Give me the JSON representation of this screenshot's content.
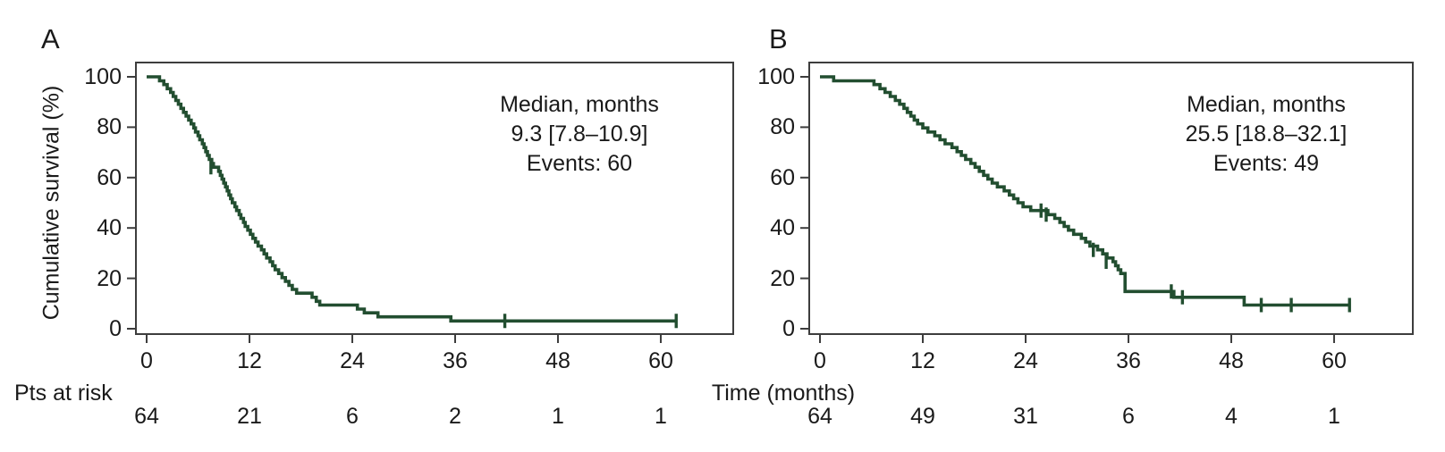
{
  "figure": {
    "panel_a_letter": "A",
    "panel_b_letter": "B",
    "y_axis_title": "Cumulative survival (%)",
    "x_axis_title": "Time (months)",
    "pts_at_risk_label": "Pts at risk",
    "curve_color": "#224e30",
    "axis_color": "#3d3d3d",
    "text_color": "#1a1a1a",
    "background_color": "#ffffff"
  },
  "chart_data": [
    {
      "type": "line",
      "subtype": "kaplan-meier-step",
      "panel": "A",
      "xlabel": "Time (months)",
      "ylabel": "Cumulative survival (%)",
      "xlim": [
        0,
        68
      ],
      "ylim": [
        0,
        100
      ],
      "x_ticks": [
        0,
        12,
        24,
        36,
        48,
        60
      ],
      "y_ticks": [
        0,
        20,
        40,
        60,
        80,
        100
      ],
      "grid": false,
      "legend": "none",
      "annotation": {
        "line1": "Median, months",
        "line2": "9.3 [7.8–10.9]",
        "line3": "Events: 60"
      },
      "median_months": 9.3,
      "ci95_months": [
        7.8,
        10.9
      ],
      "events": 60,
      "pts_at_risk": {
        "times": [
          0,
          12,
          24,
          36,
          48,
          60
        ],
        "counts": [
          64,
          21,
          6,
          2,
          1,
          1
        ]
      },
      "curve_start": [
        0,
        100
      ],
      "curve_end_time": 61.8,
      "steps": [
        [
          1.5,
          98.4
        ],
        [
          2.0,
          96.9
        ],
        [
          2.4,
          95.3
        ],
        [
          2.8,
          93.8
        ],
        [
          3.1,
          92.2
        ],
        [
          3.4,
          90.6
        ],
        [
          3.7,
          89.1
        ],
        [
          4.0,
          87.5
        ],
        [
          4.3,
          85.9
        ],
        [
          4.6,
          84.4
        ],
        [
          4.9,
          82.8
        ],
        [
          5.2,
          81.3
        ],
        [
          5.5,
          79.7
        ],
        [
          5.7,
          78.1
        ],
        [
          6.0,
          76.6
        ],
        [
          6.2,
          75.0
        ],
        [
          6.5,
          73.4
        ],
        [
          6.7,
          71.9
        ],
        [
          6.9,
          70.3
        ],
        [
          7.1,
          68.8
        ],
        [
          7.3,
          67.2
        ],
        [
          7.6,
          65.6
        ],
        [
          7.8,
          64.1
        ],
        [
          8.4,
          62.5
        ],
        [
          8.6,
          60.9
        ],
        [
          8.8,
          59.4
        ],
        [
          9.0,
          57.8
        ],
        [
          9.2,
          56.3
        ],
        [
          9.4,
          54.7
        ],
        [
          9.6,
          53.1
        ],
        [
          9.8,
          51.6
        ],
        [
          10.0,
          50.0
        ],
        [
          10.3,
          48.4
        ],
        [
          10.5,
          46.9
        ],
        [
          10.8,
          45.3
        ],
        [
          11.0,
          43.8
        ],
        [
          11.3,
          42.2
        ],
        [
          11.5,
          40.6
        ],
        [
          11.8,
          39.1
        ],
        [
          12.1,
          37.5
        ],
        [
          12.4,
          35.9
        ],
        [
          12.7,
          34.4
        ],
        [
          13.0,
          32.8
        ],
        [
          13.4,
          31.3
        ],
        [
          13.7,
          29.7
        ],
        [
          14.0,
          28.1
        ],
        [
          14.4,
          26.6
        ],
        [
          14.7,
          25.0
        ],
        [
          15.0,
          23.4
        ],
        [
          15.4,
          21.9
        ],
        [
          15.8,
          20.3
        ],
        [
          16.2,
          18.8
        ],
        [
          16.6,
          17.2
        ],
        [
          17.0,
          15.6
        ],
        [
          17.5,
          14.1
        ],
        [
          19.3,
          12.5
        ],
        [
          19.8,
          10.9
        ],
        [
          20.2,
          9.4
        ],
        [
          24.6,
          7.8
        ],
        [
          25.4,
          6.3
        ],
        [
          27.0,
          4.7
        ],
        [
          35.5,
          3.1
        ]
      ],
      "censor_marks": [
        [
          7.5,
          64.1
        ],
        [
          41.8,
          3.1
        ],
        [
          61.8,
          3.1
        ]
      ]
    },
    {
      "type": "line",
      "subtype": "kaplan-meier-step",
      "panel": "B",
      "xlabel": "Time (months)",
      "ylabel": "Cumulative survival (%)",
      "xlim": [
        0,
        68
      ],
      "ylim": [
        0,
        100
      ],
      "x_ticks": [
        0,
        12,
        24,
        36,
        48,
        60
      ],
      "y_ticks": [
        0,
        20,
        40,
        60,
        80,
        100
      ],
      "grid": false,
      "legend": "none",
      "annotation": {
        "line1": "Median, months",
        "line2": "25.5 [18.8–32.1]",
        "line3": "Events: 49"
      },
      "median_months": 25.5,
      "ci95_months": [
        18.8,
        32.1
      ],
      "events": 49,
      "pts_at_risk": {
        "times": [
          0,
          12,
          24,
          36,
          48,
          60
        ],
        "counts": [
          64,
          49,
          31,
          6,
          4,
          1
        ]
      },
      "curve_start": [
        0,
        100
      ],
      "curve_end_time": 61.8,
      "steps": [
        [
          1.6,
          98.4
        ],
        [
          6.3,
          96.9
        ],
        [
          7.0,
          95.3
        ],
        [
          7.6,
          93.8
        ],
        [
          8.2,
          92.2
        ],
        [
          8.8,
          90.6
        ],
        [
          9.3,
          89.1
        ],
        [
          9.8,
          87.5
        ],
        [
          10.2,
          85.9
        ],
        [
          10.6,
          84.4
        ],
        [
          11.0,
          82.8
        ],
        [
          11.4,
          81.3
        ],
        [
          12.0,
          79.7
        ],
        [
          12.6,
          78.1
        ],
        [
          13.4,
          76.6
        ],
        [
          14.0,
          75.0
        ],
        [
          14.6,
          73.4
        ],
        [
          15.4,
          71.9
        ],
        [
          16.0,
          70.3
        ],
        [
          16.5,
          68.8
        ],
        [
          17.0,
          67.2
        ],
        [
          17.6,
          65.6
        ],
        [
          18.1,
          64.1
        ],
        [
          18.6,
          62.5
        ],
        [
          19.1,
          60.9
        ],
        [
          19.6,
          59.4
        ],
        [
          20.1,
          57.8
        ],
        [
          20.7,
          56.3
        ],
        [
          21.5,
          54.7
        ],
        [
          22.1,
          53.1
        ],
        [
          22.6,
          51.6
        ],
        [
          23.1,
          50.0
        ],
        [
          23.7,
          48.4
        ],
        [
          24.6,
          46.9
        ],
        [
          26.6,
          45.3
        ],
        [
          27.4,
          43.8
        ],
        [
          28.0,
          42.2
        ],
        [
          28.5,
          40.6
        ],
        [
          29.0,
          39.1
        ],
        [
          29.6,
          37.5
        ],
        [
          30.5,
          35.9
        ],
        [
          31.0,
          34.4
        ],
        [
          31.5,
          32.8
        ],
        [
          32.4,
          31.3
        ],
        [
          33.0,
          29.7
        ],
        [
          33.5,
          28.1
        ],
        [
          34.2,
          26.6
        ],
        [
          34.5,
          25.0
        ],
        [
          34.8,
          23.4
        ],
        [
          35.1,
          21.9
        ],
        [
          35.6,
          14.8
        ],
        [
          41.3,
          12.5
        ],
        [
          49.5,
          9.4
        ]
      ],
      "censor_marks": [
        [
          25.8,
          46.9
        ],
        [
          26.4,
          45.3
        ],
        [
          31.9,
          31.3
        ],
        [
          33.4,
          26.6
        ],
        [
          41.0,
          14.8
        ],
        [
          42.3,
          12.5
        ],
        [
          51.5,
          9.4
        ],
        [
          55.0,
          9.4
        ],
        [
          61.8,
          9.4
        ]
      ]
    }
  ]
}
